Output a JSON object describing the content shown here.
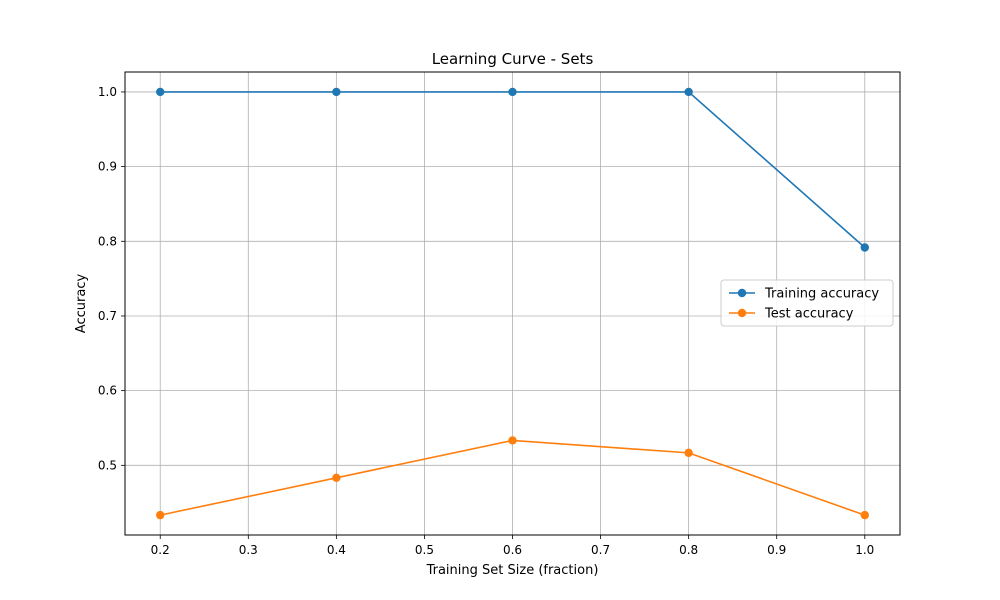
{
  "chart_data": {
    "type": "line",
    "title": "Learning Curve - Sets",
    "xlabel": "Training Set Size (fraction)",
    "ylabel": "Accuracy",
    "x": [
      0.2,
      0.4,
      0.6,
      0.8,
      1.0
    ],
    "xlim": [
      0.16,
      1.04
    ],
    "ylim": [
      0.4067,
      1.0267
    ],
    "xticks": [
      0.2,
      0.3,
      0.4,
      0.5,
      0.6,
      0.7,
      0.8,
      0.9,
      1.0
    ],
    "xtick_labels": [
      "0.2",
      "0.3",
      "0.4",
      "0.5",
      "0.6",
      "0.7",
      "0.8",
      "0.9",
      "1.0"
    ],
    "yticks": [
      0.5,
      0.6,
      0.7,
      0.8,
      0.9,
      1.0
    ],
    "ytick_labels": [
      "0.5",
      "0.6",
      "0.7",
      "0.8",
      "0.9",
      "1.0"
    ],
    "grid": true,
    "legend_position": "center-right",
    "series": [
      {
        "name": "Training accuracy",
        "color": "#1f77b4",
        "marker": "circle",
        "values": [
          1.0,
          1.0,
          1.0,
          1.0,
          0.7917
        ]
      },
      {
        "name": "Test accuracy",
        "color": "#ff7f0e",
        "marker": "circle",
        "values": [
          0.4333,
          0.4833,
          0.5333,
          0.5167,
          0.4333
        ]
      }
    ]
  }
}
